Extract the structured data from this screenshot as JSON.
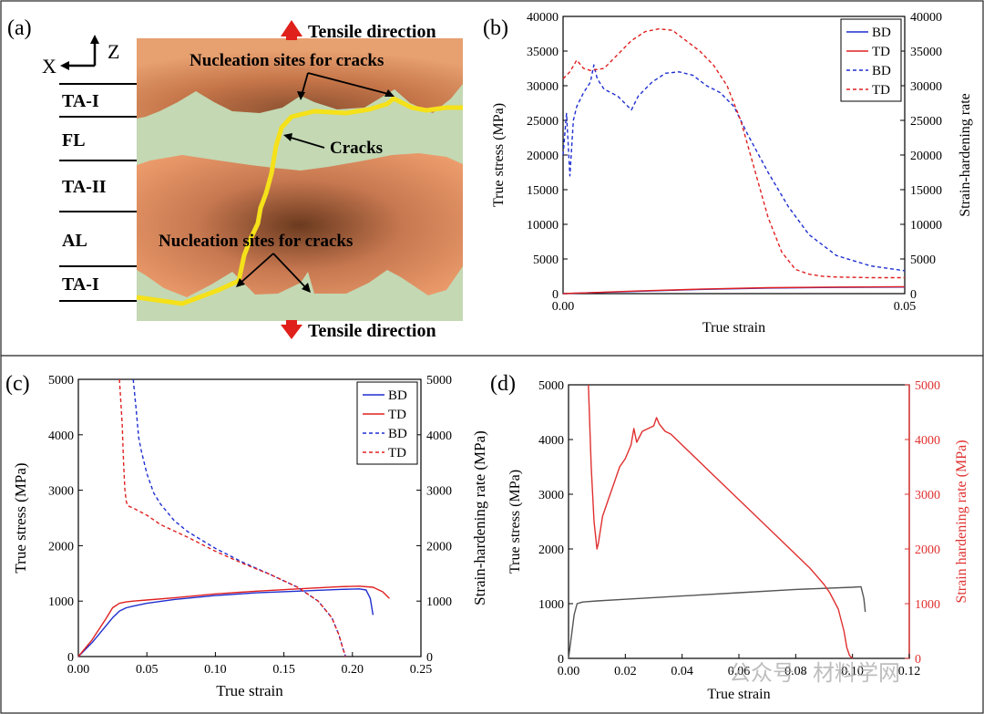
{
  "panel_labels": {
    "a": "(a)",
    "b": "(b)",
    "c": "(c)",
    "d": "(d)"
  },
  "schematic": {
    "axes": {
      "x": "X",
      "z": "Z"
    },
    "layers": [
      "TA-I",
      "FL",
      "TA-II",
      "AL",
      "TA-I"
    ],
    "tensile_top": "Tensile direction",
    "tensile_bottom": "Tensile direction",
    "nucleation_top": "Nucleation sites for cracks",
    "nucleation_bottom": "Nucleation sites for cracks",
    "cracks": "Cracks"
  },
  "watermark": "公众号 · 材料学网",
  "colors": {
    "bd": "#1f2fd0",
    "td": "#e02020",
    "black_curve": "#555555",
    "red_axis": "#e03030",
    "crack": "#f5e11a",
    "arrow": "#e0201a",
    "grain": "#dc8e5e",
    "green": "#c3d8b3"
  },
  "chart_data": [
    {
      "id": "b",
      "type": "line",
      "xlabel": "True strain",
      "ylabel": "True stress (MPa)",
      "y2label": "Strain-hardening rate",
      "xlim": [
        0,
        0.05
      ],
      "ylim": [
        0,
        40000
      ],
      "y2lim": [
        0,
        40000
      ],
      "xticks": [
        "0.00",
        "0.05"
      ],
      "yticks": [
        "0",
        "5000",
        "10000",
        "15000",
        "20000",
        "25000",
        "30000",
        "35000",
        "40000"
      ],
      "legend_position": "top-right",
      "legend": [
        "BD",
        "TD",
        "BD",
        "TD"
      ],
      "series": [
        {
          "name": "BD",
          "axis": "left",
          "style": "solid",
          "color": "#1f2fd0",
          "x": [
            0,
            0.01,
            0.02,
            0.03,
            0.04,
            0.05
          ],
          "y": [
            0,
            300,
            600,
            800,
            900,
            950
          ]
        },
        {
          "name": "TD",
          "axis": "left",
          "style": "solid",
          "color": "#e02020",
          "x": [
            0,
            0.01,
            0.02,
            0.03,
            0.04,
            0.05
          ],
          "y": [
            0,
            350,
            650,
            850,
            950,
            1000
          ]
        },
        {
          "name": "BD",
          "axis": "right",
          "style": "dashed",
          "color": "#1f2fd0",
          "x": [
            0.0,
            0.0005,
            0.001,
            0.0015,
            0.002,
            0.003,
            0.004,
            0.0045,
            0.005,
            0.006,
            0.008,
            0.01,
            0.011,
            0.013,
            0.015,
            0.017,
            0.019,
            0.021,
            0.023,
            0.025,
            0.027,
            0.03,
            0.033,
            0.036,
            0.04,
            0.045,
            0.05
          ],
          "y": [
            20000,
            26000,
            17000,
            25000,
            27000,
            29000,
            30500,
            33000,
            31000,
            29500,
            28500,
            26500,
            28500,
            30500,
            31800,
            32000,
            31500,
            30000,
            29000,
            27000,
            23000,
            17500,
            12500,
            8500,
            5500,
            4000,
            3300
          ]
        },
        {
          "name": "TD",
          "axis": "right",
          "style": "dashed",
          "color": "#e02020",
          "x": [
            0.0,
            0.001,
            0.002,
            0.003,
            0.004,
            0.006,
            0.008,
            0.01,
            0.012,
            0.014,
            0.016,
            0.018,
            0.02,
            0.022,
            0.024,
            0.026,
            0.028,
            0.03,
            0.032,
            0.034,
            0.036,
            0.038,
            0.04,
            0.045,
            0.05
          ],
          "y": [
            31000,
            32000,
            33700,
            32500,
            32200,
            32500,
            34500,
            36500,
            37800,
            38200,
            38000,
            36500,
            35000,
            33000,
            30000,
            25000,
            18000,
            11000,
            6000,
            3500,
            2800,
            2500,
            2400,
            2300,
            2300
          ]
        }
      ]
    },
    {
      "id": "c",
      "type": "line",
      "xlabel": "True strain",
      "ylabel": "True stress (MPa)",
      "y2label": "Strain-hardening rate (MPa)",
      "xlim": [
        0,
        0.25
      ],
      "ylim": [
        0,
        5000
      ],
      "y2lim": [
        0,
        5000
      ],
      "xticks": [
        "0.00",
        "0.05",
        "0.10",
        "0.15",
        "0.20",
        "0.25"
      ],
      "yticks": [
        "0",
        "1000",
        "2000",
        "3000",
        "4000",
        "5000"
      ],
      "legend_position": "top-right",
      "legend": [
        "BD",
        "TD",
        "BD",
        "TD"
      ],
      "series": [
        {
          "name": "BD",
          "axis": "left",
          "style": "solid",
          "color": "#1f2fd0",
          "x": [
            0,
            0.01,
            0.02,
            0.025,
            0.03,
            0.035,
            0.04,
            0.05,
            0.07,
            0.1,
            0.13,
            0.16,
            0.19,
            0.205,
            0.21,
            0.213,
            0.215
          ],
          "y": [
            0,
            250,
            550,
            700,
            820,
            880,
            910,
            960,
            1030,
            1100,
            1150,
            1180,
            1210,
            1220,
            1200,
            1050,
            750
          ]
        },
        {
          "name": "TD",
          "axis": "left",
          "style": "solid",
          "color": "#e02020",
          "x": [
            0,
            0.01,
            0.02,
            0.025,
            0.03,
            0.035,
            0.04,
            0.05,
            0.07,
            0.1,
            0.13,
            0.16,
            0.19,
            0.205,
            0.215,
            0.222,
            0.227
          ],
          "y": [
            0,
            300,
            680,
            880,
            960,
            985,
            1000,
            1020,
            1060,
            1130,
            1180,
            1220,
            1260,
            1270,
            1250,
            1170,
            1050
          ]
        },
        {
          "name": "BD",
          "axis": "right",
          "style": "dashed",
          "color": "#1f2fd0",
          "x": [
            0.04,
            0.042,
            0.044,
            0.046,
            0.05,
            0.055,
            0.06,
            0.07,
            0.08,
            0.1,
            0.12,
            0.14,
            0.16,
            0.175,
            0.185,
            0.19,
            0.193,
            0.195
          ],
          "y": [
            5000,
            4500,
            3950,
            3700,
            3300,
            2950,
            2750,
            2450,
            2250,
            1950,
            1700,
            1480,
            1250,
            1000,
            700,
            400,
            150,
            0
          ]
        },
        {
          "name": "TD",
          "axis": "right",
          "style": "dashed",
          "color": "#e02020",
          "x": [
            0.03,
            0.032,
            0.033,
            0.034,
            0.035,
            0.036,
            0.04,
            0.05,
            0.06,
            0.08,
            0.1,
            0.12,
            0.14,
            0.16,
            0.175,
            0.185,
            0.19,
            0.193,
            0.195
          ],
          "y": [
            5000,
            4200,
            3500,
            3000,
            2800,
            2720,
            2680,
            2550,
            2380,
            2150,
            1900,
            1680,
            1480,
            1250,
            1000,
            700,
            400,
            150,
            0
          ]
        }
      ]
    },
    {
      "id": "d",
      "type": "line",
      "xlabel": "True strain",
      "ylabel": "True stress (MPa)",
      "y2label": "Strain hardening rate (MPa)",
      "xlim": [
        0,
        0.12
      ],
      "ylim": [
        0,
        5000
      ],
      "y2lim": [
        0,
        5000
      ],
      "xticks": [
        "0.00",
        "0.02",
        "0.04",
        "0.06",
        "0.08",
        "0.10",
        "0.12"
      ],
      "yticks": [
        "0",
        "1000",
        "2000",
        "3000",
        "4000",
        "5000"
      ],
      "series": [
        {
          "name": "",
          "axis": "left",
          "style": "solid",
          "color": "#555555",
          "x": [
            0,
            0.001,
            0.002,
            0.003,
            0.005,
            0.01,
            0.02,
            0.04,
            0.06,
            0.08,
            0.1,
            0.103,
            0.104,
            0.1045
          ],
          "y": [
            0,
            400,
            800,
            1000,
            1030,
            1050,
            1080,
            1140,
            1200,
            1260,
            1300,
            1310,
            1100,
            850
          ]
        },
        {
          "name": "",
          "axis": "right",
          "style": "solid",
          "color": "#e03030",
          "x": [
            0.007,
            0.008,
            0.009,
            0.01,
            0.0105,
            0.012,
            0.014,
            0.016,
            0.018,
            0.02,
            0.022,
            0.023,
            0.024,
            0.025,
            0.026,
            0.028,
            0.03,
            0.031,
            0.032,
            0.034,
            0.036,
            0.04,
            0.045,
            0.05,
            0.06,
            0.07,
            0.08,
            0.085,
            0.09,
            0.092,
            0.095,
            0.097,
            0.098,
            0.099,
            0.1
          ],
          "y": [
            5000,
            3500,
            2500,
            2000,
            2100,
            2600,
            2900,
            3200,
            3500,
            3650,
            3900,
            4200,
            3950,
            4050,
            4150,
            4200,
            4250,
            4400,
            4280,
            4150,
            4100,
            3900,
            3650,
            3400,
            2900,
            2400,
            1900,
            1650,
            1350,
            1200,
            900,
            500,
            200,
            50,
            0
          ]
        }
      ]
    }
  ]
}
